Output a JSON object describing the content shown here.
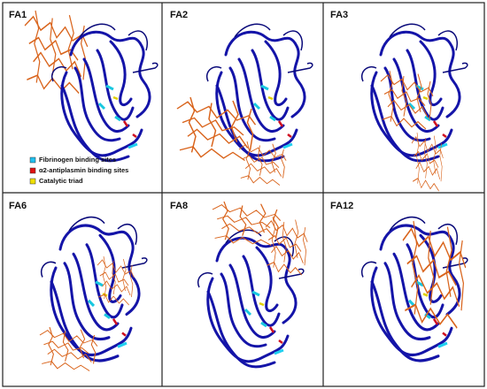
{
  "panels": [
    {
      "label": "FA1"
    },
    {
      "label": "FA2"
    },
    {
      "label": "FA3"
    },
    {
      "label": "FA6"
    },
    {
      "label": "FA8"
    },
    {
      "label": "FA12"
    }
  ],
  "legend": [
    {
      "label": "Fibrinogen binding sites"
    },
    {
      "label": "α2-antiplasmin binding sites"
    },
    {
      "label": "Catalytic triad"
    }
  ]
}
